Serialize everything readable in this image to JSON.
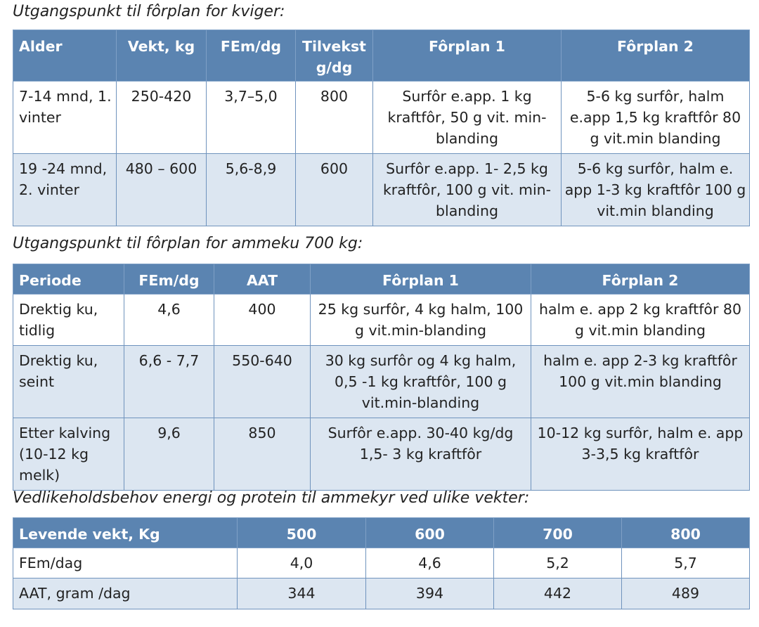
{
  "sections": [
    {
      "caption": "Utgangspunkt til fôrplan for kviger:",
      "header": [
        "Alder",
        "Vekt, kg",
        "FEm/dg",
        "Tilvekst g/dg",
        "Fôrplan 1",
        "Fôrplan 2"
      ],
      "rows": [
        [
          "7-14 mnd, 1. vinter",
          "250-420",
          "3,7–5,0",
          "800",
          "Surfôr e.app. 1 kg kraftfôr, 50 g vit. min-blanding",
          "5-6 kg surfôr, halm e.app 1,5 kg kraftfôr 80 g vit.min blanding"
        ],
        [
          "19 -24 mnd, 2. vinter",
          "480 – 600",
          "5,6-8,9",
          "600",
          "Surfôr e.app. 1- 2,5 kg kraftfôr, 100 g vit. min-blanding",
          "5-6 kg surfôr, halm e. app 1-3 kg kraftfôr 100 g vit.min blanding"
        ]
      ]
    },
    {
      "caption": "Utgangspunkt til fôrplan for ammeku 700 kg:",
      "header": [
        "Periode",
        "FEm/dg",
        "AAT",
        "Fôrplan 1",
        "Fôrplan 2"
      ],
      "rows": [
        [
          "Drektig ku, tidlig",
          "4,6",
          "400",
          "25 kg surfôr, 4 kg halm, 100 g vit.min-blanding",
          "halm e. app 2 kg kraftfôr 80 g vit.min blanding"
        ],
        [
          "Drektig ku, seint",
          "6,6 - 7,7",
          "550-640",
          "30 kg surfôr og 4 kg halm, 0,5 -1  kg kraftfôr, 100 g vit.min-blanding",
          "halm e. app 2-3 kg kraftfôr 100 g vit.min blanding"
        ],
        [
          "Etter kalving (10-12 kg melk)",
          "9,6",
          "850",
          "Surfôr e.app. 30-40 kg/dg 1,5- 3 kg kraftfôr",
          "10-12 kg surfôr, halm e. app 3-3,5 kg kraftfôr"
        ]
      ]
    },
    {
      "caption": "Vedlikeholdsbehov energi og protein til ammekyr ved ulike vekter:",
      "header": [
        "Levende vekt, Kg",
        "500",
        "600",
        "700",
        "800"
      ],
      "rows": [
        [
          "FEm/dag",
          "4,0",
          "4,6",
          "5,2",
          "5,7"
        ],
        [
          "AAT, gram /dag",
          "344",
          "394",
          "442",
          "489"
        ]
      ]
    }
  ]
}
